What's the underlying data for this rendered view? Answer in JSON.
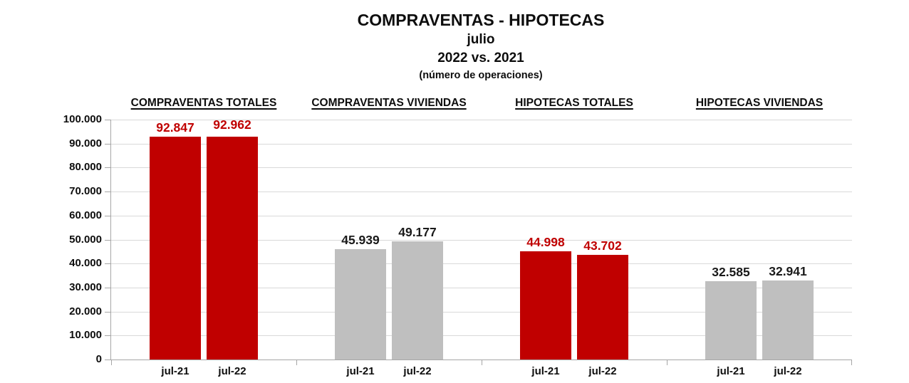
{
  "header": {
    "title": "COMPRAVENTAS - HIPOTECAS",
    "subtitle_month": "julio",
    "subtitle_years": "2022 vs. 2021",
    "subtitle_units": "(número de operaciones)"
  },
  "colors": {
    "bar_red": "#C00000",
    "bar_gray": "#BFBFBF",
    "value_label_red": "#C00000",
    "value_label_black": "#1a1a1a",
    "gridline": "#D9D9D9",
    "axis": "#A6A6A6",
    "text": "#0d0d0d"
  },
  "chart_data": {
    "type": "bar",
    "title": "COMPRAVENTAS - HIPOTECAS",
    "subtitle": "julio 2022 vs. 2021 (número de operaciones)",
    "xlabel": "",
    "ylabel": "",
    "ylim": [
      0,
      100000
    ],
    "grid": true,
    "legend_position": "none",
    "yticks": [
      0,
      10000,
      20000,
      30000,
      40000,
      50000,
      60000,
      70000,
      80000,
      90000,
      100000
    ],
    "ytick_labels": [
      "0",
      "10.000",
      "20.000",
      "30.000",
      "40.000",
      "50.000",
      "60.000",
      "70.000",
      "80.000",
      "90.000",
      "100.000"
    ],
    "categories": [
      "jul-21",
      "jul-22"
    ],
    "groups": [
      {
        "name": "COMPRAVENTAS TOTALES",
        "categories": [
          "jul-21",
          "jul-22"
        ],
        "values": [
          92847,
          92962
        ],
        "value_labels": [
          "92.847",
          "92.962"
        ],
        "bar_color": "#C00000",
        "label_color": "#C00000",
        "label_dy": [
          0,
          4
        ]
      },
      {
        "name": "COMPRAVENTAS VIVIENDAS",
        "categories": [
          "jul-21",
          "jul-22"
        ],
        "values": [
          45939,
          49177
        ],
        "value_labels": [
          "45.939",
          "49.177"
        ],
        "bar_color": "#BFBFBF",
        "label_color": "#1a1a1a",
        "label_dy": [
          0,
          0
        ]
      },
      {
        "name": "HIPOTECAS TOTALES",
        "categories": [
          "jul-21",
          "jul-22"
        ],
        "values": [
          44998,
          43702
        ],
        "value_labels": [
          "44.998",
          "43.702"
        ],
        "bar_color": "#C00000",
        "label_color": "#C00000",
        "label_dy": [
          0,
          0
        ]
      },
      {
        "name": "HIPOTECAS VIVIENDAS",
        "categories": [
          "jul-21",
          "jul-22"
        ],
        "values": [
          32585,
          32941
        ],
        "value_labels": [
          "32.585",
          "32.941"
        ],
        "bar_color": "#BFBFBF",
        "label_color": "#1a1a1a",
        "label_dy": [
          0,
          0
        ]
      }
    ]
  }
}
